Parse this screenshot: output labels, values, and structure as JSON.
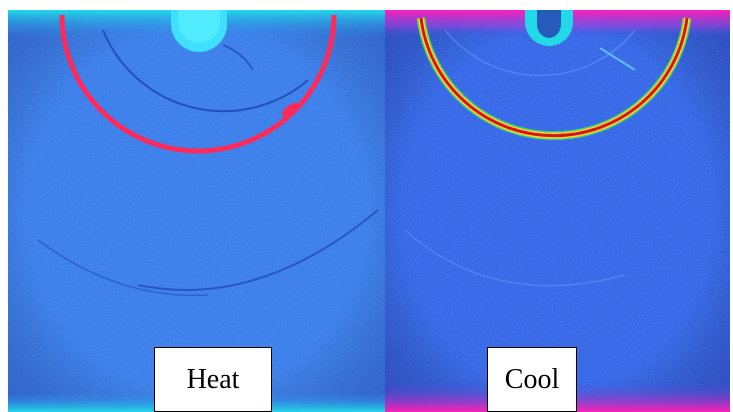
{
  "panels": [
    {
      "label": "Heat",
      "colors": {
        "background": "#2f6fe6",
        "top_band": "#22d9e8",
        "ring": "#ff2a5a",
        "spot": "#3fe0ff"
      }
    },
    {
      "label": "Cool",
      "colors": {
        "background": "#2a55e0",
        "top_band": "#ff1fb8",
        "ring_core": "#d01a1a",
        "ring_edge": "#ffd23a",
        "ring_outer": "#3fe060",
        "spot": "#22d9e8"
      }
    }
  ]
}
